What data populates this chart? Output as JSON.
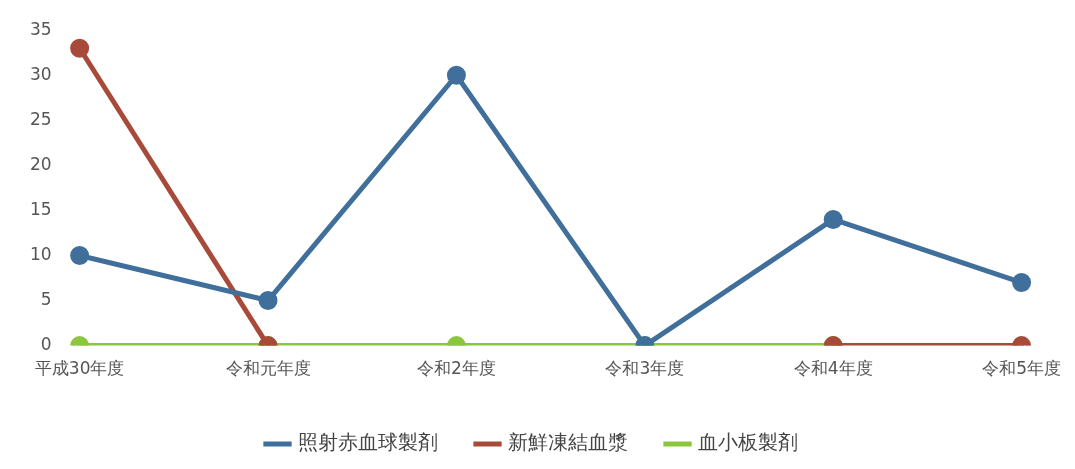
{
  "chart_data": {
    "type": "line",
    "categories": [
      "平成30年度",
      "令和元年度",
      "令和2年度",
      "令和3年度",
      "令和4年度",
      "令和5年度"
    ],
    "series": [
      {
        "name": "照射赤血球製剤",
        "color": "#3f6f9a",
        "values": [
          10,
          5,
          30,
          0,
          14,
          7
        ]
      },
      {
        "name": "新鮮凍結血漿",
        "color": "#a84a3a",
        "values": [
          33,
          0,
          null,
          null,
          0,
          0
        ]
      },
      {
        "name": "血小板製剤",
        "color": "#8cc63f",
        "values": [
          0,
          0,
          0,
          0,
          0,
          null
        ]
      }
    ],
    "ylim": [
      0,
      35
    ],
    "yticks": [
      0,
      5,
      10,
      15,
      20,
      25,
      30,
      35
    ],
    "grid": false,
    "legend": "bottom",
    "marker": "circle",
    "line_style": "solid"
  }
}
